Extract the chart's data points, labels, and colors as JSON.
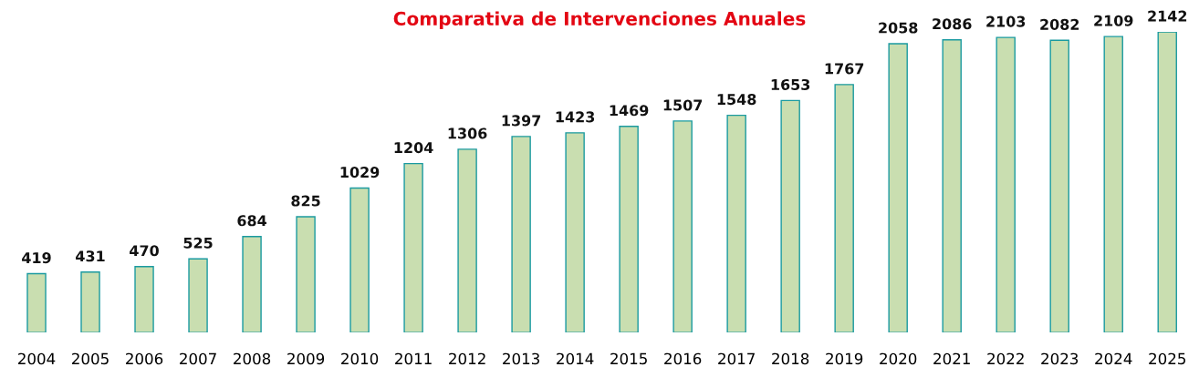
{
  "chart_data": {
    "type": "bar",
    "title": "Comparativa de Intervenciones Anuales",
    "categories": [
      "2004",
      "2005",
      "2006",
      "2007",
      "2008",
      "2009",
      "2010",
      "2011",
      "2012",
      "2013",
      "2014",
      "2015",
      "2016",
      "2017",
      "2018",
      "2019",
      "2020",
      "2021",
      "2022",
      "2023",
      "2024",
      "2025"
    ],
    "values": [
      419,
      431,
      470,
      525,
      684,
      825,
      1029,
      1204,
      1306,
      1397,
      1423,
      1469,
      1507,
      1548,
      1653,
      1767,
      2058,
      2086,
      2103,
      2082,
      2109,
      2142
    ],
    "color": "#c9deb0",
    "data_labels": true,
    "grid": false
  }
}
